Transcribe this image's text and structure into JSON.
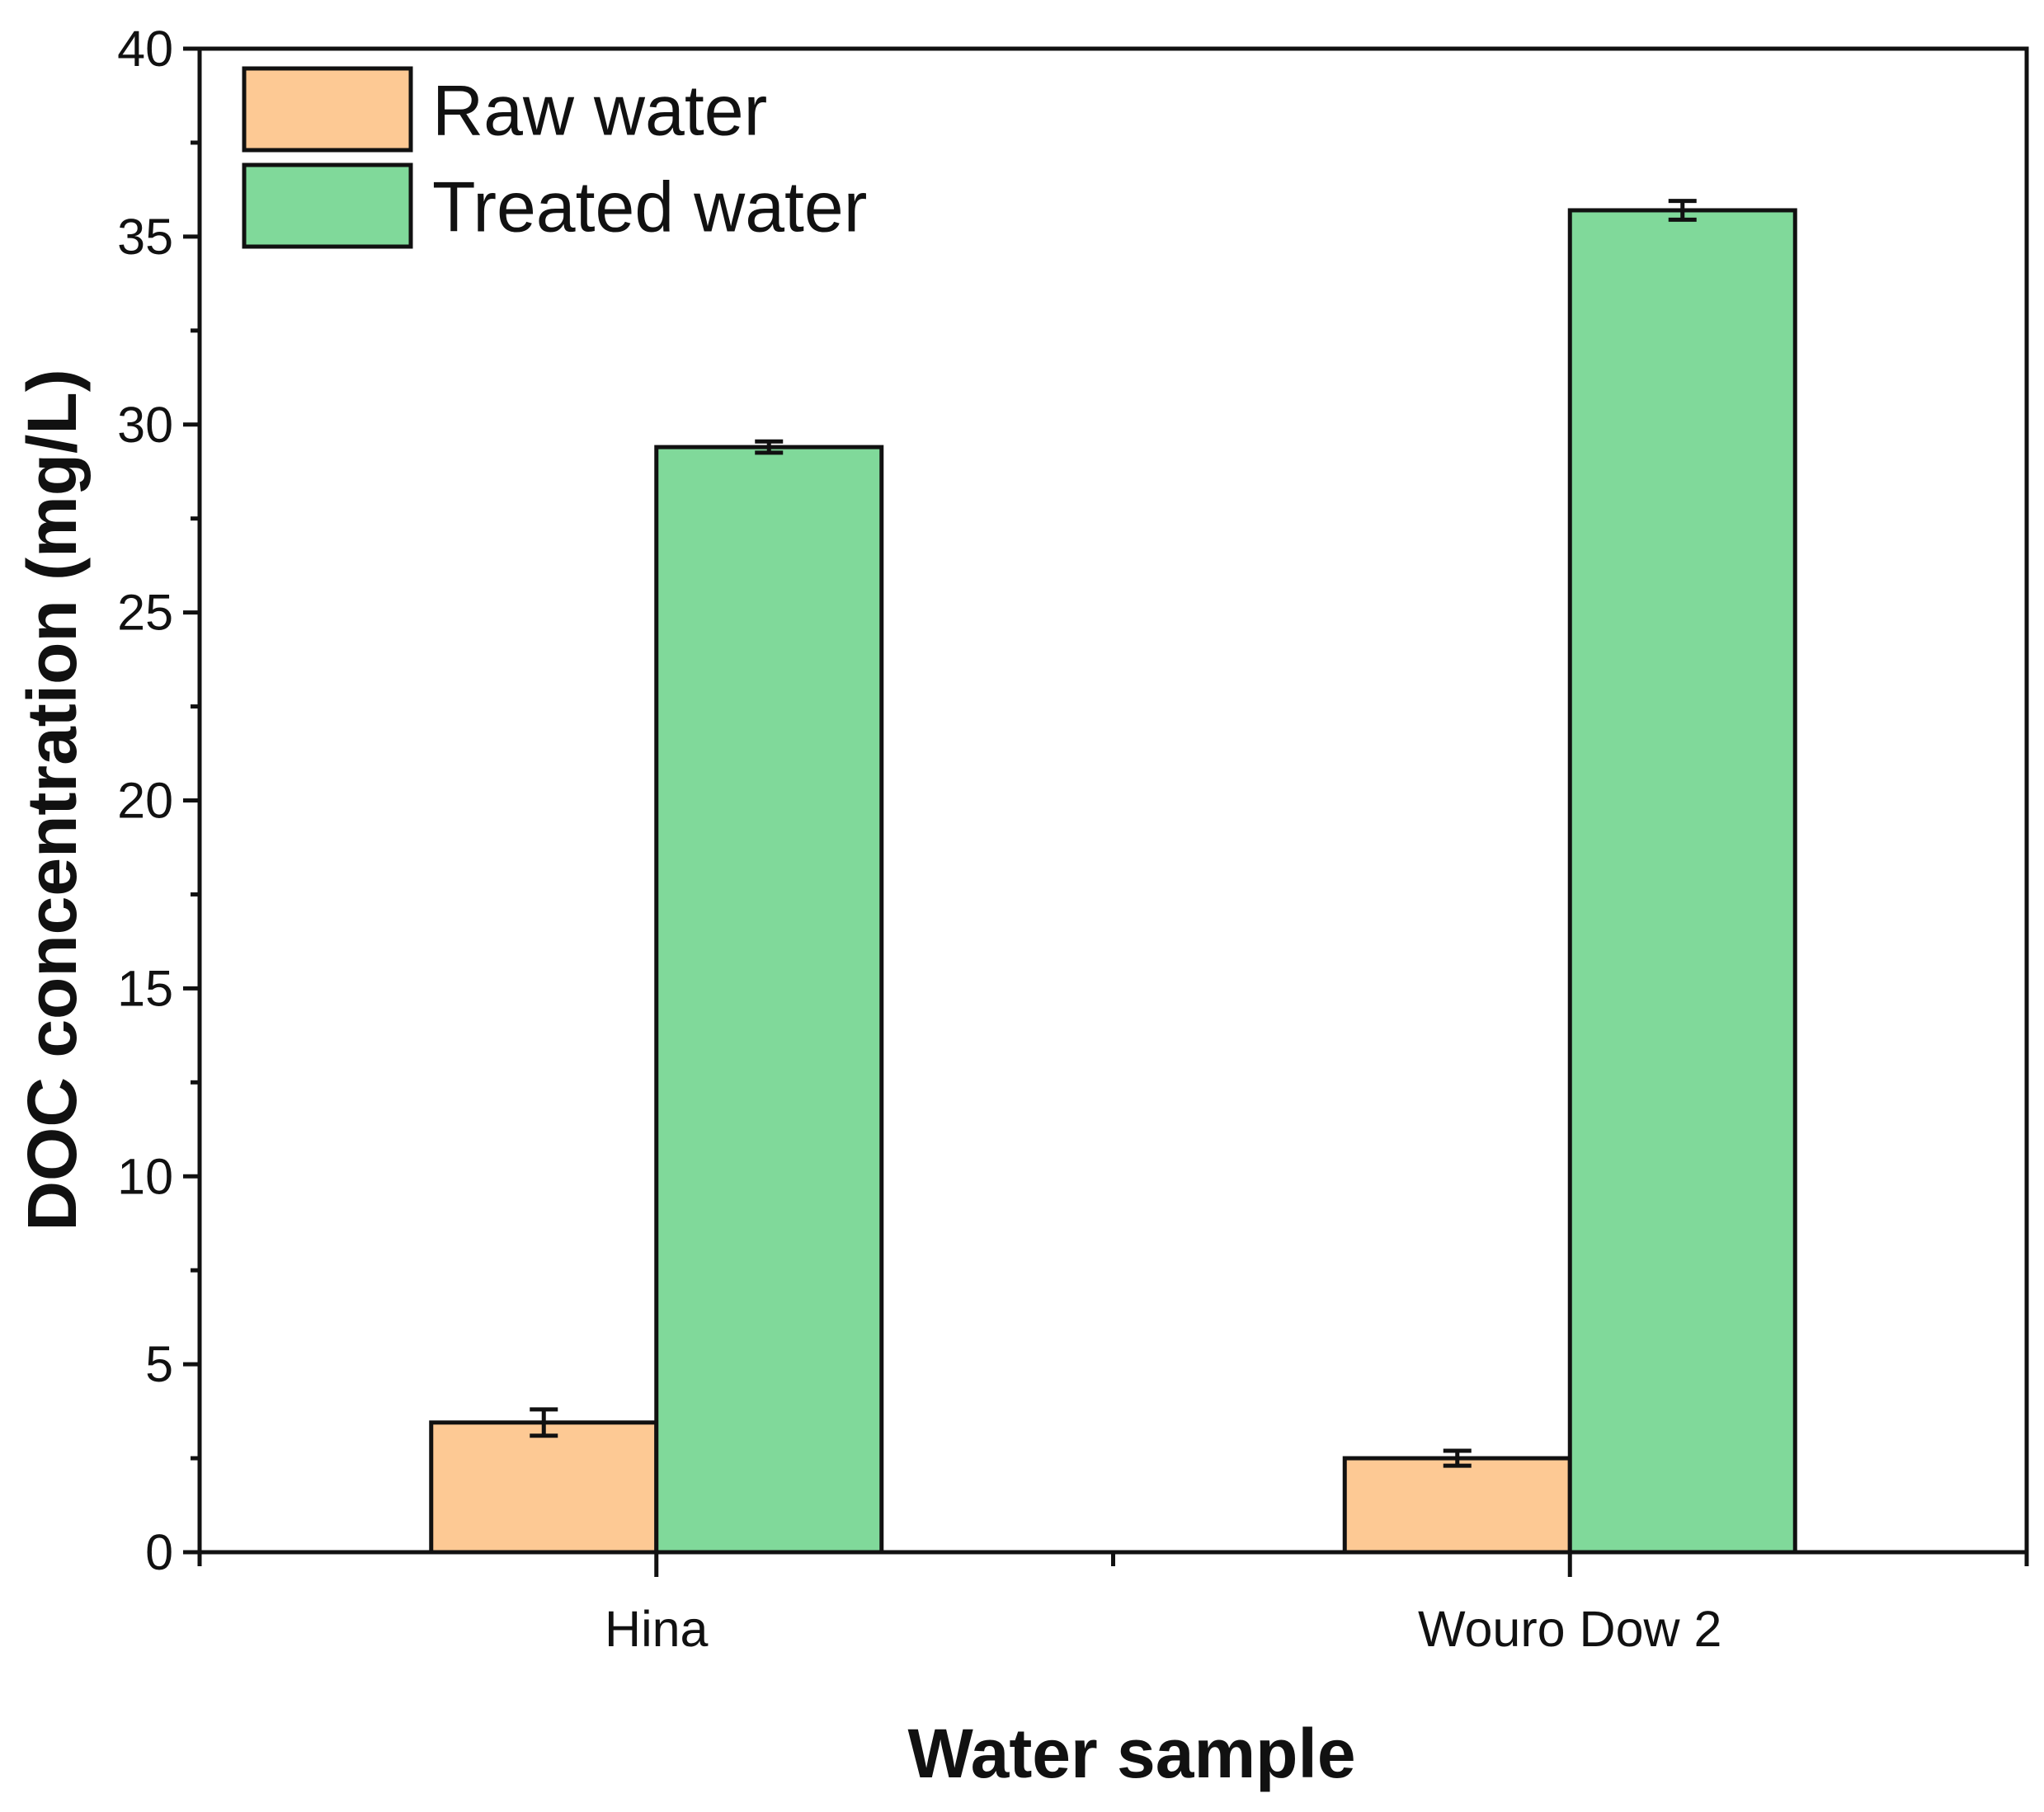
{
  "chart_data": {
    "type": "bar",
    "title": "",
    "xlabel": "Water sample",
    "ylabel": "DOC concentration (mg/L)",
    "ylim": [
      0,
      40
    ],
    "yticks": [
      0,
      5,
      10,
      15,
      20,
      25,
      30,
      35,
      40
    ],
    "categories": [
      "Hina",
      "Wouro Dow 2"
    ],
    "series": [
      {
        "name": "Raw water",
        "color": "#FDC994",
        "values": [
          3.45,
          2.5
        ],
        "errors": [
          0.35,
          0.2
        ]
      },
      {
        "name": "Treated water",
        "color": "#80D99A",
        "values": [
          29.4,
          35.7
        ],
        "errors": [
          0.15,
          0.25
        ]
      }
    ],
    "legend_position": "top-left",
    "grid": false
  }
}
